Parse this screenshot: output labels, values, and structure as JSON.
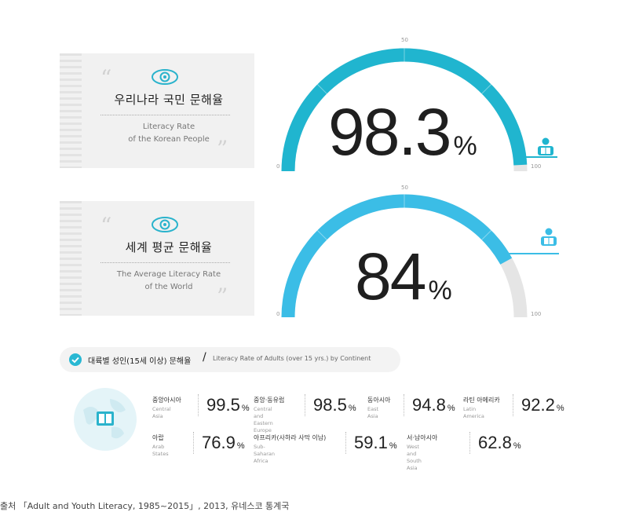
{
  "panels": [
    {
      "title_ko": "우리나라 국민 문해율",
      "title_en": "Literacy Rate\nof the Korean People",
      "value": "98.3",
      "unit": "%",
      "color": "#20b5cf"
    },
    {
      "title_ko": "세계 평균 문해율",
      "title_en": "The Average Literacy Rate\nof the World",
      "value": "84",
      "unit": "%",
      "color": "#3bbde6"
    }
  ],
  "gauge_ticks": {
    "min": "0",
    "mid": "50",
    "max": "100"
  },
  "continent_header": {
    "title_ko": "대륙별 성인(15세 이상) 문해율",
    "slash": "/",
    "title_en": "Literacy Rate of Adults (over 15 yrs.) by Continent"
  },
  "regions": [
    {
      "name_ko": "중앙아시아",
      "name_en": "Central Asia",
      "value": "99.5",
      "unit": "%"
    },
    {
      "name_ko": "중앙·동유럽",
      "name_en": "Central and\nEastern Europe",
      "value": "98.5",
      "unit": "%"
    },
    {
      "name_ko": "동아시아",
      "name_en": "East Asia",
      "value": "94.8",
      "unit": "%"
    },
    {
      "name_ko": "라틴 아메리카",
      "name_en": "Latin America",
      "value": "92.2",
      "unit": "%"
    },
    {
      "name_ko": "아랍",
      "name_en": "Arab States",
      "value": "76.9",
      "unit": "%"
    },
    {
      "name_ko": "아프리카(사하라 사막 이남)",
      "name_en": "Sub-Saharan Africa",
      "value": "59.1",
      "unit": "%"
    },
    {
      "name_ko": "서·남아시아",
      "name_en": "West and South Asia",
      "value": "62.8",
      "unit": "%"
    }
  ],
  "source": "출처 「Adult and Youth Literacy, 1985~2015」, 2013, 유네스코 통계국",
  "chart_data": [
    {
      "type": "gauge",
      "title": "우리나라 국민 문해율",
      "value": 98.3,
      "min": 0,
      "max": 100,
      "unit": "%"
    },
    {
      "type": "gauge",
      "title": "세계 평균 문해율",
      "value": 84,
      "min": 0,
      "max": 100,
      "unit": "%"
    },
    {
      "type": "table",
      "title": "대륙별 성인(15세 이상) 문해율",
      "categories": [
        "중앙아시아",
        "중앙·동유럽",
        "동아시아",
        "라틴 아메리카",
        "아랍",
        "아프리카(사하라 사막 이남)",
        "서·남아시아"
      ],
      "values": [
        99.5,
        98.5,
        94.8,
        92.2,
        76.9,
        59.1,
        62.8
      ],
      "unit": "%"
    }
  ]
}
